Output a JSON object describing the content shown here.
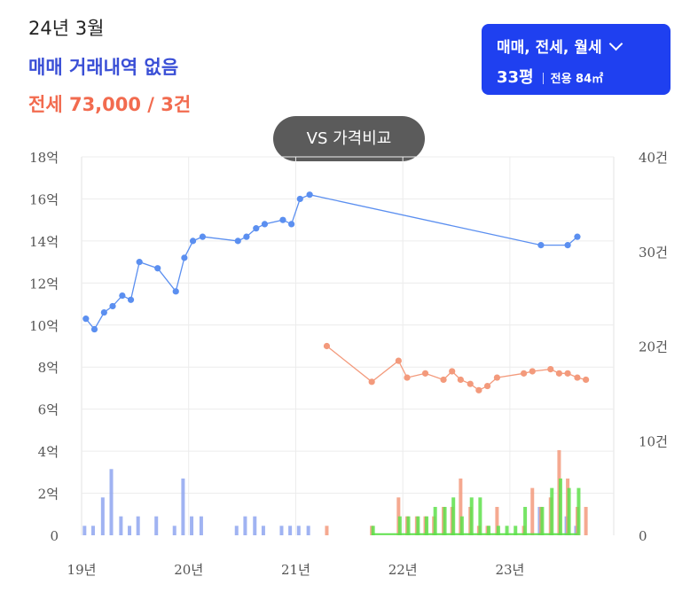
{
  "header": {
    "date": "24년 3월",
    "sale_status": "매매 거래내역 없음",
    "jeonse_summary": "전세 73,000 / 3건"
  },
  "filter": {
    "types": "매매, 전세, 월세",
    "size_main": "33평",
    "size_sub": "전용 84㎡"
  },
  "compare_button": "VS 가격비교",
  "colors": {
    "sale": "#5b8ff0",
    "jeonse": "#f39a7c",
    "monthly": "#5ee04b",
    "sale_volume": "#8fa6f0",
    "accent": "#1f40f0"
  },
  "chart_data": {
    "type": "line",
    "x_ticks": [
      "19년",
      "20년",
      "21년",
      "22년",
      "23년"
    ],
    "y_left_ticks": [
      "0",
      "2억",
      "4억",
      "6억",
      "8억",
      "10억",
      "12억",
      "14억",
      "16억",
      "18억"
    ],
    "y_right_ticks": [
      "0",
      "10건",
      "20건",
      "30건",
      "40건"
    ],
    "ylim_left": [
      0,
      18
    ],
    "ylim_right": [
      0,
      40
    ],
    "xlim": [
      2019.0,
      2023.97
    ],
    "grid": true,
    "series": [
      {
        "kind": "line",
        "color": "#5b8ff0",
        "points": [
          [
            2019.04,
            10.3
          ],
          [
            2019.12,
            9.8
          ],
          [
            2019.21,
            10.6
          ],
          [
            2019.29,
            10.9
          ],
          [
            2019.38,
            11.4
          ],
          [
            2019.46,
            11.2
          ],
          [
            2019.54,
            13.0
          ],
          [
            2019.71,
            12.7
          ],
          [
            2019.88,
            11.6
          ],
          [
            2019.96,
            13.2
          ],
          [
            2020.04,
            14.0
          ],
          [
            2020.13,
            14.2
          ],
          [
            2020.46,
            14.0
          ],
          [
            2020.54,
            14.2
          ],
          [
            2020.63,
            14.6
          ],
          [
            2020.71,
            14.8
          ],
          [
            2020.88,
            15.0
          ],
          [
            2020.96,
            14.8
          ],
          [
            2021.04,
            16.0
          ],
          [
            2021.13,
            16.2
          ],
          [
            2023.29,
            13.8
          ],
          [
            2023.54,
            13.8
          ],
          [
            2023.63,
            14.2
          ]
        ]
      },
      {
        "kind": "line",
        "color": "#f39a7c",
        "points": [
          [
            2021.29,
            9.0
          ],
          [
            2021.71,
            7.3
          ],
          [
            2021.96,
            8.3
          ],
          [
            2022.04,
            7.5
          ],
          [
            2022.21,
            7.7
          ],
          [
            2022.38,
            7.4
          ],
          [
            2022.46,
            7.8
          ],
          [
            2022.54,
            7.4
          ],
          [
            2022.63,
            7.2
          ],
          [
            2022.71,
            6.9
          ],
          [
            2022.79,
            7.1
          ],
          [
            2022.88,
            7.5
          ],
          [
            2023.13,
            7.7
          ],
          [
            2023.21,
            7.8
          ],
          [
            2023.38,
            7.9
          ],
          [
            2023.46,
            7.7
          ],
          [
            2023.54,
            7.7
          ],
          [
            2023.63,
            7.5
          ],
          [
            2023.71,
            7.4
          ]
        ]
      },
      {
        "kind": "line",
        "color": "#5ee04b",
        "points": [
          [
            2021.71,
            0.05
          ],
          [
            2023.63,
            0.05
          ]
        ]
      },
      {
        "kind": "bar",
        "color": "#8fa6f0",
        "values": [
          [
            2019.04,
            1
          ],
          [
            2019.12,
            1
          ],
          [
            2019.21,
            4
          ],
          [
            2019.29,
            7
          ],
          [
            2019.38,
            2
          ],
          [
            2019.46,
            1
          ],
          [
            2019.54,
            2
          ],
          [
            2019.71,
            2
          ],
          [
            2019.88,
            1
          ],
          [
            2019.96,
            6
          ],
          [
            2020.04,
            2
          ],
          [
            2020.13,
            2
          ],
          [
            2020.46,
            1
          ],
          [
            2020.54,
            2
          ],
          [
            2020.63,
            2
          ],
          [
            2020.71,
            1
          ],
          [
            2020.88,
            1
          ],
          [
            2020.96,
            1
          ],
          [
            2021.04,
            1
          ],
          [
            2021.13,
            1
          ],
          [
            2023.29,
            3
          ],
          [
            2023.54,
            2
          ],
          [
            2023.63,
            1
          ]
        ]
      },
      {
        "kind": "bar",
        "color": "#f39a7c",
        "values": [
          [
            2021.29,
            1
          ],
          [
            2021.71,
            1
          ],
          [
            2021.96,
            4
          ],
          [
            2022.04,
            2
          ],
          [
            2022.13,
            2
          ],
          [
            2022.21,
            2
          ],
          [
            2022.29,
            2
          ],
          [
            2022.38,
            3
          ],
          [
            2022.46,
            3
          ],
          [
            2022.54,
            6
          ],
          [
            2022.63,
            3
          ],
          [
            2022.71,
            1
          ],
          [
            2022.79,
            1
          ],
          [
            2022.88,
            3
          ],
          [
            2023.13,
            1
          ],
          [
            2023.21,
            5
          ],
          [
            2023.29,
            3
          ],
          [
            2023.38,
            4
          ],
          [
            2023.46,
            9
          ],
          [
            2023.54,
            6
          ],
          [
            2023.63,
            3
          ],
          [
            2023.71,
            3
          ]
        ]
      },
      {
        "kind": "bar",
        "color": "#5ee04b",
        "values": [
          [
            2021.71,
            1
          ],
          [
            2021.96,
            2
          ],
          [
            2022.04,
            2
          ],
          [
            2022.13,
            2
          ],
          [
            2022.21,
            2
          ],
          [
            2022.29,
            3
          ],
          [
            2022.38,
            3
          ],
          [
            2022.46,
            4
          ],
          [
            2022.54,
            2
          ],
          [
            2022.63,
            4
          ],
          [
            2022.71,
            4
          ],
          [
            2022.79,
            1
          ],
          [
            2022.88,
            1
          ],
          [
            2022.96,
            1
          ],
          [
            2023.04,
            1
          ],
          [
            2023.13,
            3
          ],
          [
            2023.29,
            3
          ],
          [
            2023.38,
            5
          ],
          [
            2023.46,
            6
          ],
          [
            2023.54,
            5
          ],
          [
            2023.63,
            5
          ]
        ]
      }
    ]
  }
}
